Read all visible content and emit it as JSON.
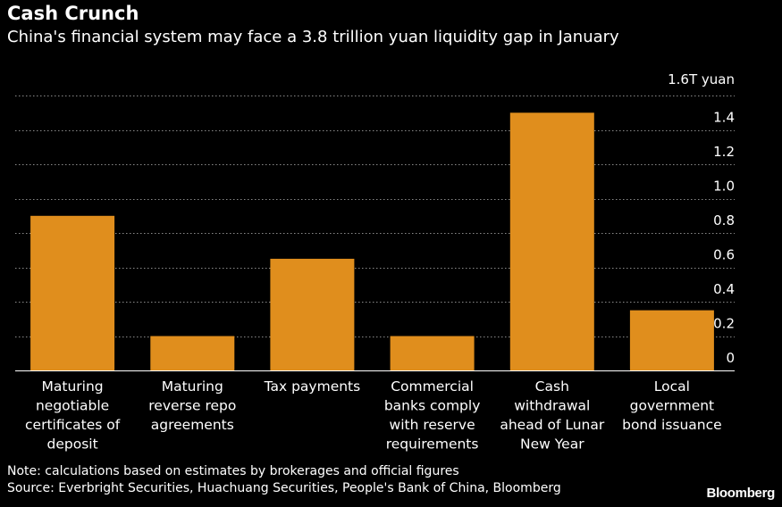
{
  "chart_data": {
    "type": "bar",
    "title": "Cash Crunch",
    "subtitle": "China's financial system may face a 3.8 trillion yuan liquidity gap in January",
    "unit_label": "1.6T yuan",
    "categories": [
      [
        "Maturing",
        "negotiable",
        "certificates of",
        "deposit"
      ],
      [
        "Maturing",
        "reverse repo",
        "agreements"
      ],
      [
        "Tax payments"
      ],
      [
        "Commercial",
        "banks comply",
        "with reserve",
        "requirements"
      ],
      [
        "Cash",
        "withdrawal",
        "ahead of Lunar",
        "New Year"
      ],
      [
        "Local",
        "government",
        "bond issuance"
      ]
    ],
    "values": [
      0.9,
      0.2,
      0.65,
      0.2,
      1.5,
      0.35
    ],
    "ylim": [
      0,
      1.6
    ],
    "yticks": [
      0,
      0.2,
      0.4,
      0.6,
      0.8,
      1.0,
      1.2,
      1.4
    ],
    "ytick_labels": [
      "0",
      "0.2",
      "0.4",
      "0.6",
      "0.8",
      "1.0",
      "1.2",
      "1.4"
    ],
    "grid": true,
    "bar_color": "#e08e1d",
    "grid_color": "#8a8a8a",
    "note": "Note: calculations based on estimates by brokerages and official figures",
    "source": "Source: Everbright Securities, Huachuang Securities, People's Bank of China, Bloomberg"
  },
  "branding": {
    "logo": "Bloomberg"
  }
}
